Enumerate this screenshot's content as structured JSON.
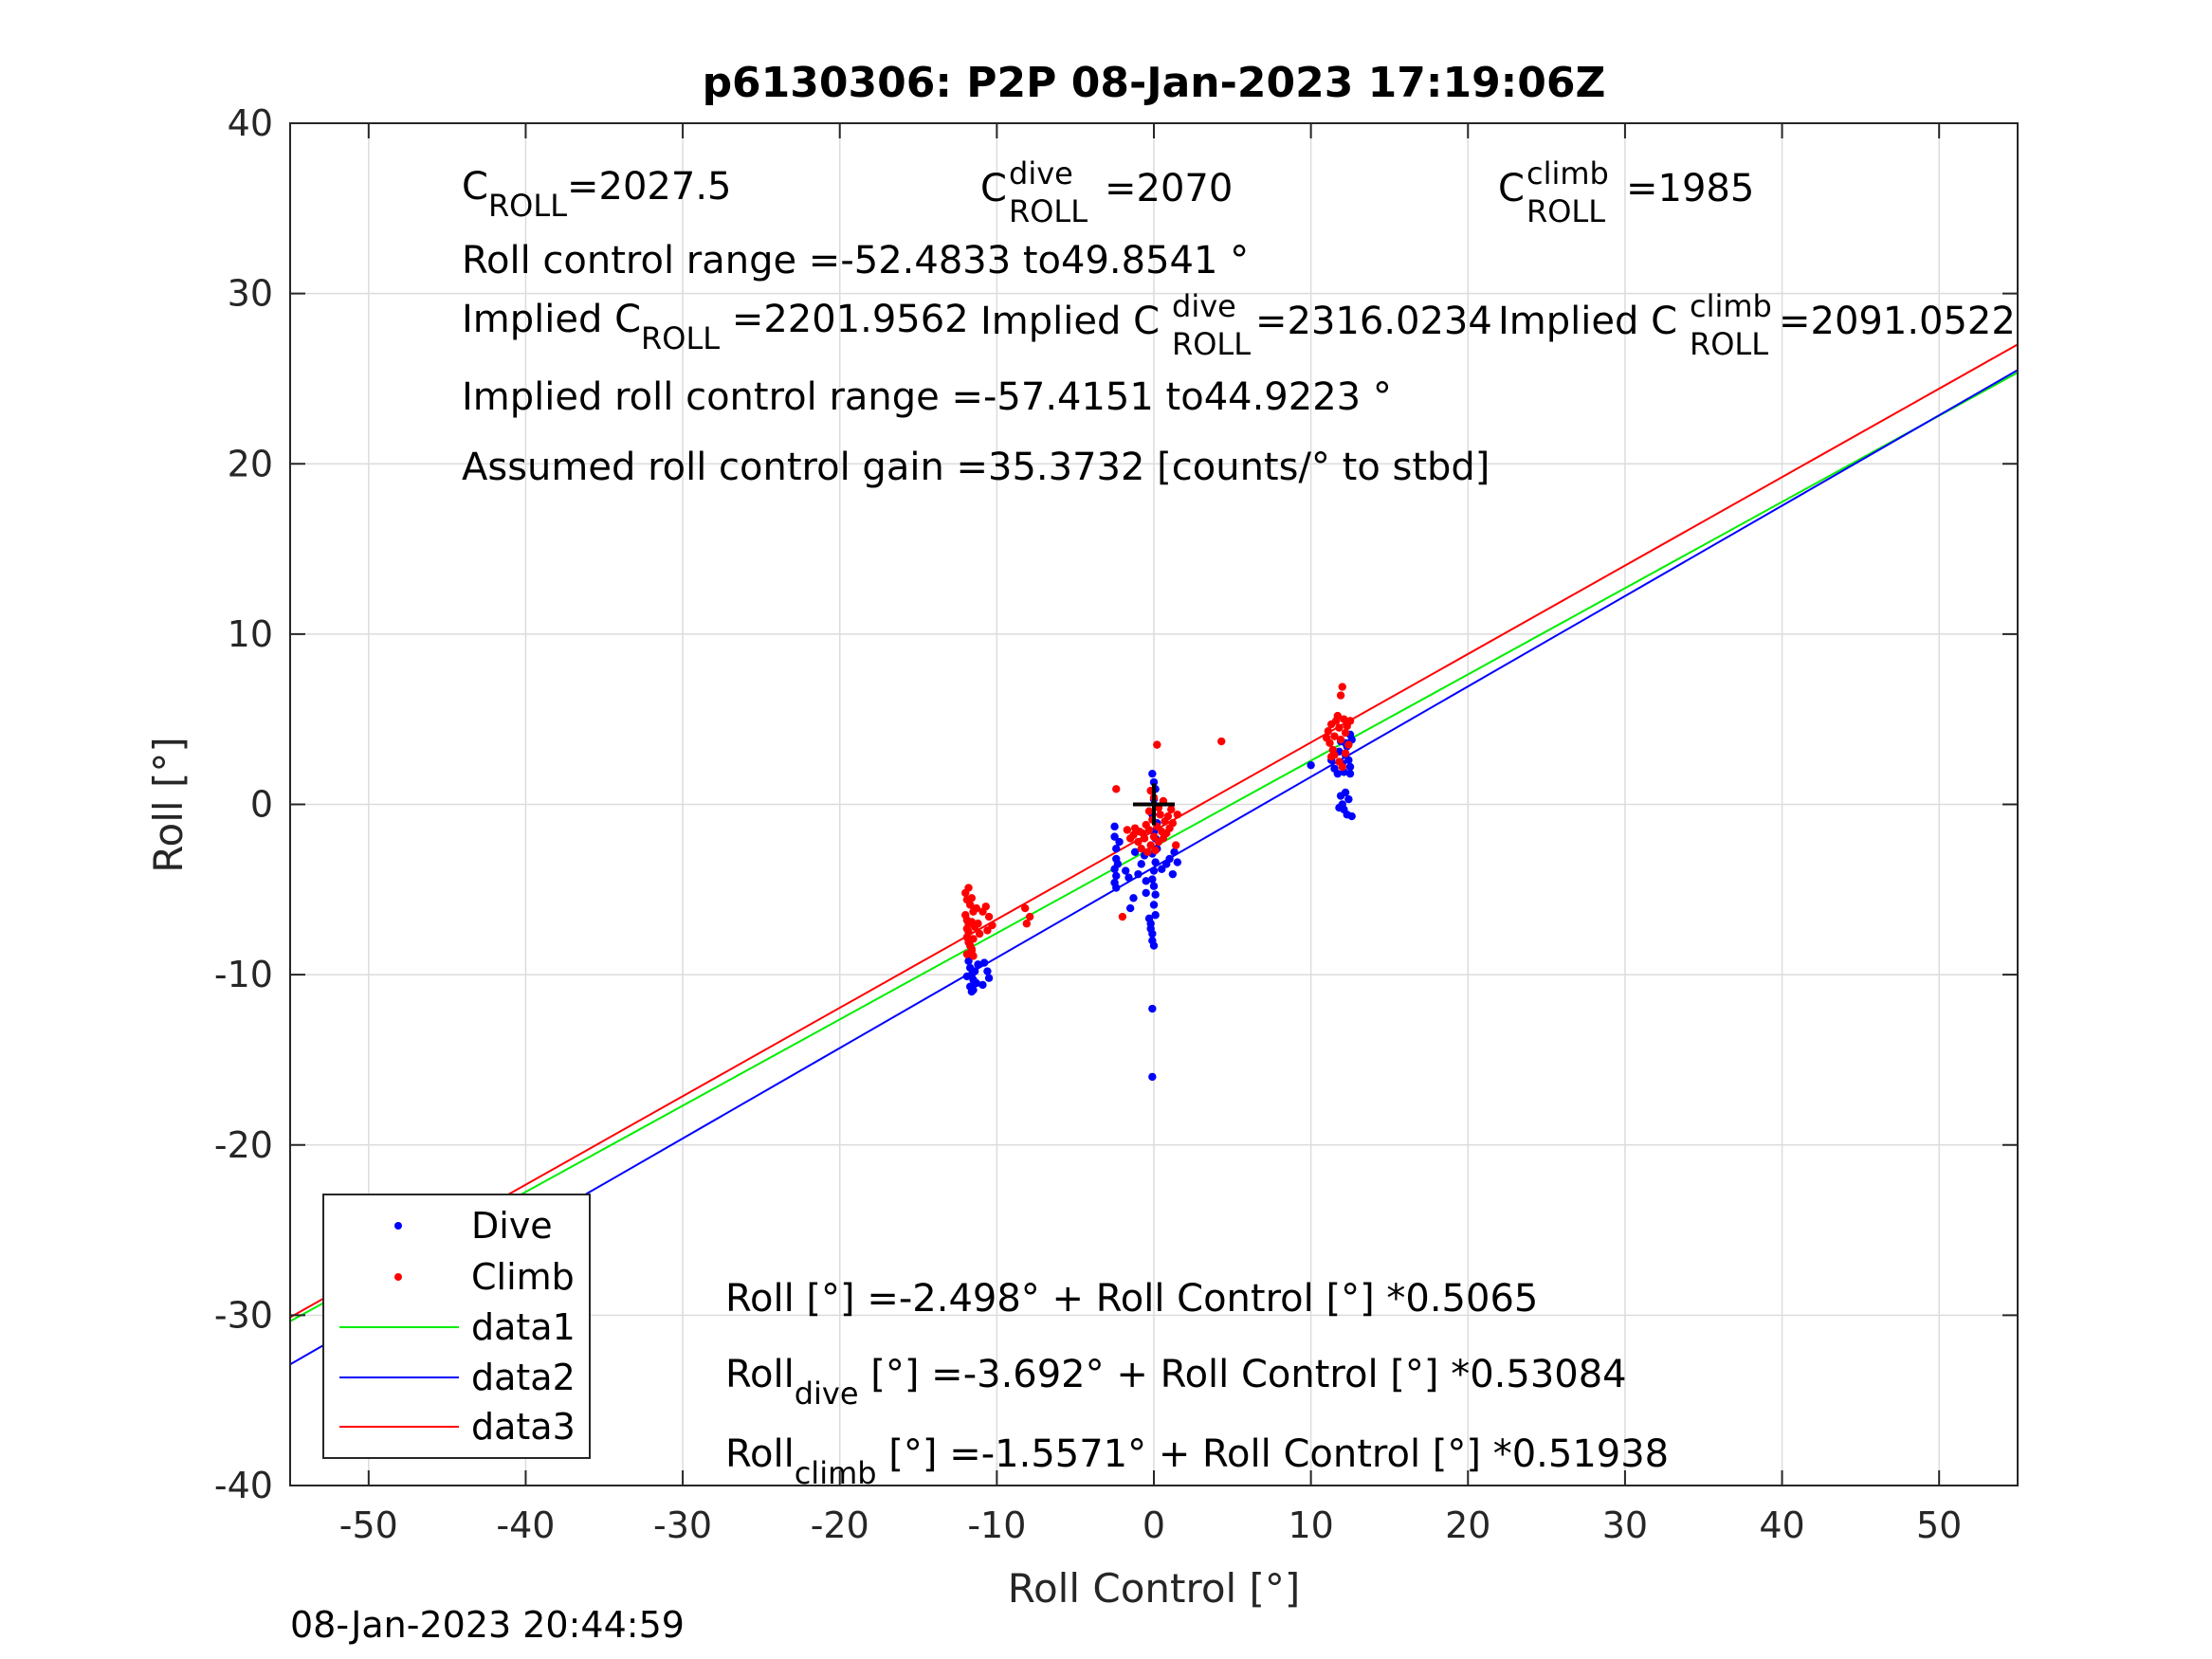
{
  "footer": {
    "timestamp": "08-Jan-2023 20:44:59"
  },
  "annotations": {
    "c_roll": {
      "base": "C",
      "sub": "ROLL",
      "value": "=2027.5"
    },
    "c_roll_dive": {
      "base": "C",
      "sup": "dive",
      "sub": "ROLL",
      "value": "=2070"
    },
    "c_roll_climb": {
      "base": "C",
      "sup": "climb",
      "sub": "ROLL",
      "value": "=1985"
    },
    "roll_control_range": "Roll control range =-52.4833 to49.8541 °",
    "implied_c_roll": {
      "prefix": "Implied C",
      "sub": "ROLL",
      "value": " =2201.9562"
    },
    "implied_c_roll_dive": {
      "prefix": "Implied C",
      "sup": "dive",
      "sub": "ROLL",
      "value": " =2316.0234"
    },
    "implied_c_roll_climb": {
      "prefix": "Implied C",
      "sup": "climb",
      "sub": "ROLL",
      "value": " =2091.0522"
    },
    "implied_range": "Implied roll control range =-57.4151 to44.9223 °",
    "gain": "Assumed roll control gain =35.3732 [counts/° to stbd]",
    "eq_all": "Roll [°] =-2.498° + Roll Control [°] *0.5065",
    "eq_dive": {
      "base": "Roll",
      "sub": "dive",
      "rest": " [°] =-3.692° + Roll Control [°] *0.53084"
    },
    "eq_climb": {
      "base": "Roll",
      "sub": "climb",
      "rest": " [°] =-1.5571° + Roll Control [°] *0.51938"
    }
  },
  "chart_data": {
    "type": "scatter",
    "title": "p6130306: P2P 08-Jan-2023 17:19:06Z",
    "xlabel": "Roll Control [°]",
    "ylabel": "Roll [°]",
    "xlim": [
      -55,
      55
    ],
    "ylim": [
      -40,
      40
    ],
    "xticks": [
      -50,
      -40,
      -30,
      -20,
      -10,
      0,
      10,
      20,
      30,
      40,
      50
    ],
    "yticks": [
      -40,
      -30,
      -20,
      -10,
      0,
      10,
      20,
      30,
      40
    ],
    "grid": true,
    "legend_position": "bottom-left",
    "series": [
      {
        "name": "Dive",
        "kind": "points",
        "color": "#0000ff",
        "points": [
          [
            -11.8,
            -9.2
          ],
          [
            -11.7,
            -9.6
          ],
          [
            -11.6,
            -10.0
          ],
          [
            -11.5,
            -10.3
          ],
          [
            -11.7,
            -10.7
          ],
          [
            -11.6,
            -11.0
          ],
          [
            -11.4,
            -9.8
          ],
          [
            -11.3,
            -10.5
          ],
          [
            -11.2,
            -9.4
          ],
          [
            -10.8,
            -9.3
          ],
          [
            -10.6,
            -9.8
          ],
          [
            -10.5,
            -10.2
          ],
          [
            -11.9,
            -10.1
          ],
          [
            -11.5,
            -10.9
          ],
          [
            -10.9,
            -10.6
          ],
          [
            -2.5,
            -1.3
          ],
          [
            -2.5,
            -1.9
          ],
          [
            -2.4,
            -2.6
          ],
          [
            -2.4,
            -3.2
          ],
          [
            -2.5,
            -3.8
          ],
          [
            -2.4,
            -4.2
          ],
          [
            -2.5,
            -4.6
          ],
          [
            -2.4,
            -4.9
          ],
          [
            -2.3,
            -3.5
          ],
          [
            -2.2,
            -2.2
          ],
          [
            -1.8,
            -3.9
          ],
          [
            -1.6,
            -4.3
          ],
          [
            -1.5,
            -6.1
          ],
          [
            -1.3,
            -5.5
          ],
          [
            -1.2,
            -2.8
          ],
          [
            -1.0,
            -4.1
          ],
          [
            -0.8,
            -3.5
          ],
          [
            -0.6,
            -3.0
          ],
          [
            -0.5,
            -4.5
          ],
          [
            -0.5,
            -5.2
          ],
          [
            -0.3,
            -6.7
          ],
          [
            -0.2,
            -7.0
          ],
          [
            -0.1,
            -7.6
          ],
          [
            0.0,
            -8.3
          ],
          [
            -0.1,
            -8.0
          ],
          [
            -0.2,
            -7.3
          ],
          [
            0.1,
            -6.5
          ],
          [
            0.0,
            -5.9
          ],
          [
            0.1,
            -5.3
          ],
          [
            0.0,
            -4.8
          ],
          [
            -0.1,
            -4.4
          ],
          [
            0.0,
            -3.9
          ],
          [
            0.1,
            -3.4
          ],
          [
            -0.1,
            -2.9
          ],
          [
            0.2,
            -2.6
          ],
          [
            0.1,
            -2.0
          ],
          [
            0.0,
            -1.6
          ],
          [
            0.2,
            -1.1
          ],
          [
            -0.1,
            -0.6
          ],
          [
            0.0,
            0.3
          ],
          [
            0.1,
            0.9
          ],
          [
            0.0,
            1.3
          ],
          [
            -0.1,
            1.8
          ],
          [
            -0.1,
            -12.0
          ],
          [
            -0.1,
            -16.0
          ],
          [
            1.0,
            -3.2
          ],
          [
            1.3,
            -2.8
          ],
          [
            1.5,
            -3.4
          ],
          [
            1.2,
            -4.1
          ],
          [
            0.8,
            -3.5
          ],
          [
            0.5,
            -3.8
          ],
          [
            10.0,
            2.3
          ],
          [
            11.3,
            2.6
          ],
          [
            11.5,
            2.1
          ],
          [
            11.7,
            1.8
          ],
          [
            11.8,
            3.1
          ],
          [
            12.0,
            2.4
          ],
          [
            12.1,
            1.9
          ],
          [
            12.2,
            2.9
          ],
          [
            12.3,
            3.4
          ],
          [
            12.4,
            2.6
          ],
          [
            12.5,
            2.2
          ],
          [
            12.5,
            1.8
          ],
          [
            12.6,
            3.8
          ],
          [
            12.5,
            4.1
          ],
          [
            11.9,
            3.7
          ],
          [
            12.2,
            3.6
          ],
          [
            11.9,
            0.5
          ],
          [
            12.0,
            0.0
          ],
          [
            12.1,
            -0.3
          ],
          [
            12.3,
            -0.6
          ],
          [
            12.6,
            -0.7
          ],
          [
            12.4,
            0.3
          ],
          [
            12.2,
            0.7
          ],
          [
            11.8,
            -0.2
          ]
        ]
      },
      {
        "name": "Climb",
        "kind": "points",
        "color": "#ff0000",
        "points": [
          [
            -12.0,
            -6.5
          ],
          [
            -11.9,
            -6.8
          ],
          [
            -11.8,
            -7.0
          ],
          [
            -11.9,
            -7.3
          ],
          [
            -11.8,
            -7.5
          ],
          [
            -11.9,
            -7.8
          ],
          [
            -11.8,
            -8.1
          ],
          [
            -11.7,
            -8.3
          ],
          [
            -11.6,
            -8.6
          ],
          [
            -11.5,
            -7.9
          ],
          [
            -11.4,
            -7.2
          ],
          [
            -11.6,
            -6.9
          ],
          [
            -11.5,
            -6.3
          ],
          [
            -11.7,
            -5.9
          ],
          [
            -11.9,
            -5.6
          ],
          [
            -12.0,
            -5.2
          ],
          [
            -11.8,
            -4.9
          ],
          [
            -11.6,
            -5.5
          ],
          [
            -11.3,
            -6.1
          ],
          [
            -11.2,
            -7.0
          ],
          [
            -11.1,
            -7.6
          ],
          [
            -11.5,
            -8.9
          ],
          [
            -11.6,
            -8.5
          ],
          [
            -11.9,
            -8.8
          ],
          [
            -10.7,
            -6.0
          ],
          [
            -10.5,
            -6.6
          ],
          [
            -10.3,
            -7.1
          ],
          [
            -10.9,
            -6.3
          ],
          [
            -10.6,
            -7.4
          ],
          [
            -8.2,
            -6.1
          ],
          [
            -8.1,
            -7.0
          ],
          [
            -7.9,
            -6.6
          ],
          [
            -2.4,
            0.9
          ],
          [
            -2.0,
            -6.6
          ],
          [
            -1.7,
            -1.5
          ],
          [
            -1.5,
            -2.0
          ],
          [
            -1.3,
            -1.8
          ],
          [
            -1.2,
            -1.4
          ],
          [
            -1.0,
            -2.2
          ],
          [
            -0.9,
            -1.6
          ],
          [
            -0.8,
            -2.6
          ],
          [
            -0.7,
            -1.7
          ],
          [
            -0.6,
            -2.0
          ],
          [
            -0.5,
            -1.2
          ],
          [
            -0.4,
            -2.8
          ],
          [
            -0.3,
            -1.5
          ],
          [
            -0.2,
            -2.4
          ],
          [
            -0.1,
            -0.9
          ],
          [
            0.0,
            -1.9
          ],
          [
            0.1,
            -2.7
          ],
          [
            0.2,
            -1.3
          ],
          [
            0.3,
            -2.2
          ],
          [
            0.4,
            -0.6
          ],
          [
            0.5,
            -1.6
          ],
          [
            0.6,
            -2.0
          ],
          [
            0.7,
            -1.0
          ],
          [
            0.8,
            -1.7
          ],
          [
            0.9,
            -0.7
          ],
          [
            1.0,
            -1.4
          ],
          [
            1.1,
            -0.3
          ],
          [
            1.2,
            -1.1
          ],
          [
            1.4,
            -2.4
          ],
          [
            1.5,
            -0.6
          ],
          [
            0.2,
            3.5
          ],
          [
            -0.2,
            0.8
          ],
          [
            0.0,
            0.4
          ],
          [
            0.3,
            -0.2
          ],
          [
            -0.3,
            -0.4
          ],
          [
            0.6,
            0.2
          ],
          [
            4.3,
            3.7
          ],
          [
            11.0,
            3.9
          ],
          [
            11.1,
            4.3
          ],
          [
            11.2,
            3.6
          ],
          [
            11.3,
            4.7
          ],
          [
            11.4,
            3.2
          ],
          [
            11.5,
            4.0
          ],
          [
            11.6,
            4.9
          ],
          [
            11.7,
            5.2
          ],
          [
            11.8,
            4.5
          ],
          [
            11.9,
            3.8
          ],
          [
            11.9,
            6.4
          ],
          [
            12.0,
            6.9
          ],
          [
            12.1,
            5.0
          ],
          [
            12.2,
            4.2
          ],
          [
            12.3,
            4.6
          ],
          [
            12.4,
            3.5
          ],
          [
            12.5,
            4.9
          ],
          [
            11.5,
            2.9
          ],
          [
            11.8,
            2.5
          ],
          [
            12.0,
            2.2
          ],
          [
            11.3,
            2.8
          ],
          [
            12.2,
            3.0
          ]
        ]
      },
      {
        "name": "data1",
        "kind": "line",
        "color": "#00ee00",
        "intercept": -2.498,
        "slope": 0.5065
      },
      {
        "name": "data2",
        "kind": "line",
        "color": "#0000ff",
        "intercept": -3.692,
        "slope": 0.53084
      },
      {
        "name": "data3",
        "kind": "line",
        "color": "#ff0000",
        "intercept": -1.5571,
        "slope": 0.51938
      }
    ],
    "marker": {
      "type": "cross",
      "x": 0,
      "y": 0,
      "color": "#000000"
    }
  }
}
